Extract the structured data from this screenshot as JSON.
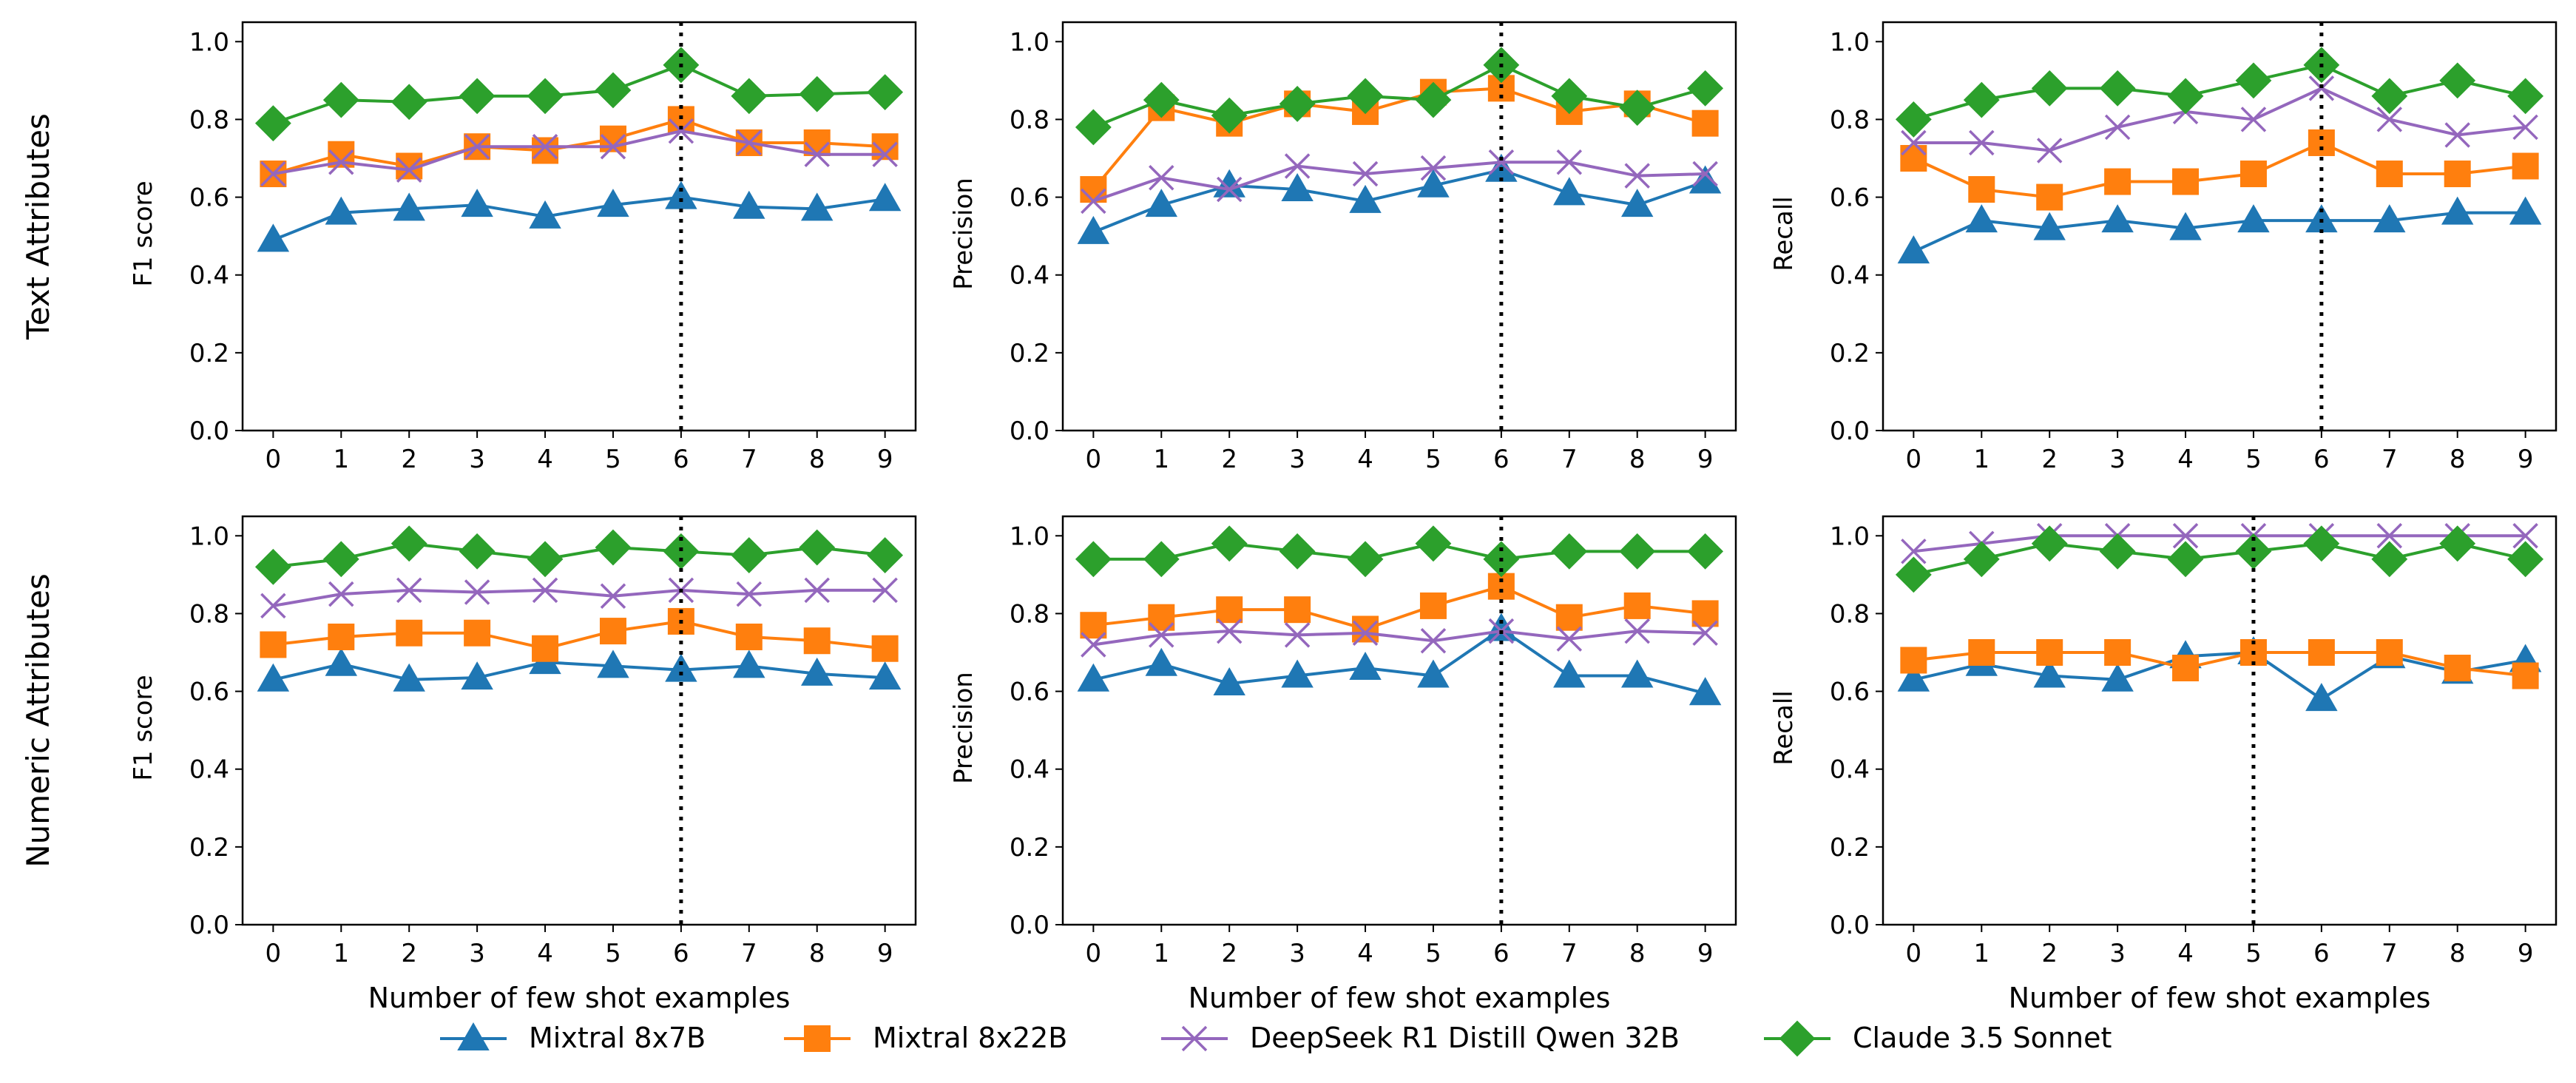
{
  "figure": {
    "row_labels": [
      "Text Attributes",
      "Numeric Attributes"
    ],
    "x_label": "Number of few shot examples",
    "legend": [
      {
        "name": "Mixtral 8x7B",
        "color": "#1f77b4",
        "marker": "triangle"
      },
      {
        "name": "Mixtral 8x22B",
        "color": "#ff7f0e",
        "marker": "square"
      },
      {
        "name": "DeepSeek R1 Distill Qwen 32B",
        "color": "#9467bd",
        "marker": "x"
      },
      {
        "name": "Claude 3.5 Sonnet",
        "color": "#2ca02c",
        "marker": "diamond"
      }
    ]
  },
  "chart_data": [
    {
      "type": "line",
      "row": "Text Attributes",
      "ylabel": "F1 score",
      "x": [
        0,
        1,
        2,
        3,
        4,
        5,
        6,
        7,
        8,
        9
      ],
      "xticks": [
        "0",
        "1",
        "2",
        "3",
        "4",
        "5",
        "6",
        "7",
        "8",
        "9"
      ],
      "yticks": [
        "0.0",
        "0.2",
        "0.4",
        "0.6",
        "0.8",
        "1.0"
      ],
      "ylim": [
        0,
        1.05
      ],
      "vline": 6,
      "series": [
        {
          "name": "Mixtral 8x7B",
          "values": [
            0.49,
            0.56,
            0.57,
            0.58,
            0.55,
            0.58,
            0.6,
            0.575,
            0.57,
            0.595
          ]
        },
        {
          "name": "Mixtral 8x22B",
          "values": [
            0.66,
            0.71,
            0.68,
            0.73,
            0.72,
            0.75,
            0.8,
            0.74,
            0.74,
            0.73
          ]
        },
        {
          "name": "DeepSeek R1 Distill Qwen 32B",
          "values": [
            0.66,
            0.69,
            0.67,
            0.73,
            0.73,
            0.73,
            0.77,
            0.74,
            0.71,
            0.71
          ]
        },
        {
          "name": "Claude 3.5 Sonnet",
          "values": [
            0.79,
            0.85,
            0.845,
            0.86,
            0.86,
            0.875,
            0.94,
            0.86,
            0.865,
            0.87
          ]
        }
      ]
    },
    {
      "type": "line",
      "row": "Text Attributes",
      "ylabel": "Precision",
      "x": [
        0,
        1,
        2,
        3,
        4,
        5,
        6,
        7,
        8,
        9
      ],
      "xticks": [
        "0",
        "1",
        "2",
        "3",
        "4",
        "5",
        "6",
        "7",
        "8",
        "9"
      ],
      "yticks": [
        "0.0",
        "0.2",
        "0.4",
        "0.6",
        "0.8",
        "1.0"
      ],
      "ylim": [
        0,
        1.05
      ],
      "vline": 6,
      "series": [
        {
          "name": "Mixtral 8x7B",
          "values": [
            0.51,
            0.58,
            0.63,
            0.62,
            0.59,
            0.63,
            0.67,
            0.61,
            0.58,
            0.64
          ]
        },
        {
          "name": "Mixtral 8x22B",
          "values": [
            0.62,
            0.83,
            0.79,
            0.84,
            0.82,
            0.87,
            0.88,
            0.82,
            0.84,
            0.79
          ]
        },
        {
          "name": "DeepSeek R1 Distill Qwen 32B",
          "values": [
            0.59,
            0.65,
            0.62,
            0.68,
            0.66,
            0.675,
            0.69,
            0.69,
            0.655,
            0.66
          ]
        },
        {
          "name": "Claude 3.5 Sonnet",
          "values": [
            0.78,
            0.85,
            0.81,
            0.84,
            0.86,
            0.85,
            0.94,
            0.86,
            0.83,
            0.88
          ]
        }
      ]
    },
    {
      "type": "line",
      "row": "Text Attributes",
      "ylabel": "Recall",
      "x": [
        0,
        1,
        2,
        3,
        4,
        5,
        6,
        7,
        8,
        9
      ],
      "xticks": [
        "0",
        "1",
        "2",
        "3",
        "4",
        "5",
        "6",
        "7",
        "8",
        "9"
      ],
      "yticks": [
        "0.0",
        "0.2",
        "0.4",
        "0.6",
        "0.8",
        "1.0"
      ],
      "ylim": [
        0,
        1.05
      ],
      "vline": 6,
      "series": [
        {
          "name": "Mixtral 8x7B",
          "values": [
            0.46,
            0.54,
            0.52,
            0.54,
            0.52,
            0.54,
            0.54,
            0.54,
            0.56,
            0.56
          ]
        },
        {
          "name": "Mixtral 8x22B",
          "values": [
            0.7,
            0.62,
            0.6,
            0.64,
            0.64,
            0.66,
            0.74,
            0.66,
            0.66,
            0.68
          ]
        },
        {
          "name": "DeepSeek R1 Distill Qwen 32B",
          "values": [
            0.74,
            0.74,
            0.72,
            0.78,
            0.82,
            0.8,
            0.88,
            0.8,
            0.76,
            0.78
          ]
        },
        {
          "name": "Claude 3.5 Sonnet",
          "values": [
            0.8,
            0.85,
            0.88,
            0.88,
            0.86,
            0.9,
            0.94,
            0.86,
            0.9,
            0.86
          ]
        }
      ]
    },
    {
      "type": "line",
      "row": "Numeric Attributes",
      "ylabel": "F1 score",
      "x": [
        0,
        1,
        2,
        3,
        4,
        5,
        6,
        7,
        8,
        9
      ],
      "xticks": [
        "0",
        "1",
        "2",
        "3",
        "4",
        "5",
        "6",
        "7",
        "8",
        "9"
      ],
      "yticks": [
        "0.0",
        "0.2",
        "0.4",
        "0.6",
        "0.8",
        "1.0"
      ],
      "ylim": [
        0,
        1.05
      ],
      "vline": 6,
      "series": [
        {
          "name": "Mixtral 8x7B",
          "values": [
            0.63,
            0.67,
            0.63,
            0.635,
            0.675,
            0.665,
            0.655,
            0.665,
            0.645,
            0.635
          ]
        },
        {
          "name": "Mixtral 8x22B",
          "values": [
            0.72,
            0.74,
            0.75,
            0.75,
            0.71,
            0.755,
            0.78,
            0.74,
            0.73,
            0.71
          ]
        },
        {
          "name": "DeepSeek R1 Distill Qwen 32B",
          "values": [
            0.82,
            0.85,
            0.86,
            0.855,
            0.86,
            0.845,
            0.86,
            0.85,
            0.86,
            0.86
          ]
        },
        {
          "name": "Claude 3.5 Sonnet",
          "values": [
            0.92,
            0.94,
            0.98,
            0.96,
            0.94,
            0.97,
            0.96,
            0.95,
            0.97,
            0.95
          ]
        }
      ]
    },
    {
      "type": "line",
      "row": "Numeric Attributes",
      "ylabel": "Precision",
      "x": [
        0,
        1,
        2,
        3,
        4,
        5,
        6,
        7,
        8,
        9
      ],
      "xticks": [
        "0",
        "1",
        "2",
        "3",
        "4",
        "5",
        "6",
        "7",
        "8",
        "9"
      ],
      "yticks": [
        "0.0",
        "0.2",
        "0.4",
        "0.6",
        "0.8",
        "1.0"
      ],
      "ylim": [
        0,
        1.05
      ],
      "vline": 6,
      "series": [
        {
          "name": "Mixtral 8x7B",
          "values": [
            0.63,
            0.67,
            0.62,
            0.64,
            0.66,
            0.64,
            0.76,
            0.64,
            0.64,
            0.595
          ]
        },
        {
          "name": "Mixtral 8x22B",
          "values": [
            0.77,
            0.79,
            0.81,
            0.81,
            0.76,
            0.82,
            0.87,
            0.79,
            0.82,
            0.8
          ]
        },
        {
          "name": "DeepSeek R1 Distill Qwen 32B",
          "values": [
            0.72,
            0.745,
            0.755,
            0.745,
            0.75,
            0.73,
            0.755,
            0.735,
            0.755,
            0.75
          ]
        },
        {
          "name": "Claude 3.5 Sonnet",
          "values": [
            0.94,
            0.94,
            0.98,
            0.96,
            0.94,
            0.98,
            0.94,
            0.96,
            0.96,
            0.96
          ]
        }
      ]
    },
    {
      "type": "line",
      "row": "Numeric Attributes",
      "ylabel": "Recall",
      "x": [
        0,
        1,
        2,
        3,
        4,
        5,
        6,
        7,
        8,
        9
      ],
      "xticks": [
        "0",
        "1",
        "2",
        "3",
        "4",
        "5",
        "6",
        "7",
        "8",
        "9"
      ],
      "yticks": [
        "0.0",
        "0.2",
        "0.4",
        "0.6",
        "0.8",
        "1.0"
      ],
      "ylim": [
        0,
        1.05
      ],
      "vline": 5,
      "series": [
        {
          "name": "Mixtral 8x7B",
          "values": [
            0.63,
            0.67,
            0.64,
            0.63,
            0.69,
            0.7,
            0.58,
            0.69,
            0.65,
            0.68
          ]
        },
        {
          "name": "Mixtral 8x22B",
          "values": [
            0.68,
            0.7,
            0.7,
            0.7,
            0.66,
            0.7,
            0.7,
            0.7,
            0.66,
            0.64
          ]
        },
        {
          "name": "DeepSeek R1 Distill Qwen 32B",
          "values": [
            0.96,
            0.98,
            1.0,
            1.0,
            1.0,
            1.0,
            1.0,
            1.0,
            1.0,
            1.0
          ]
        },
        {
          "name": "Claude 3.5 Sonnet",
          "values": [
            0.9,
            0.94,
            0.98,
            0.96,
            0.94,
            0.96,
            0.98,
            0.94,
            0.98,
            0.94
          ]
        }
      ]
    }
  ]
}
